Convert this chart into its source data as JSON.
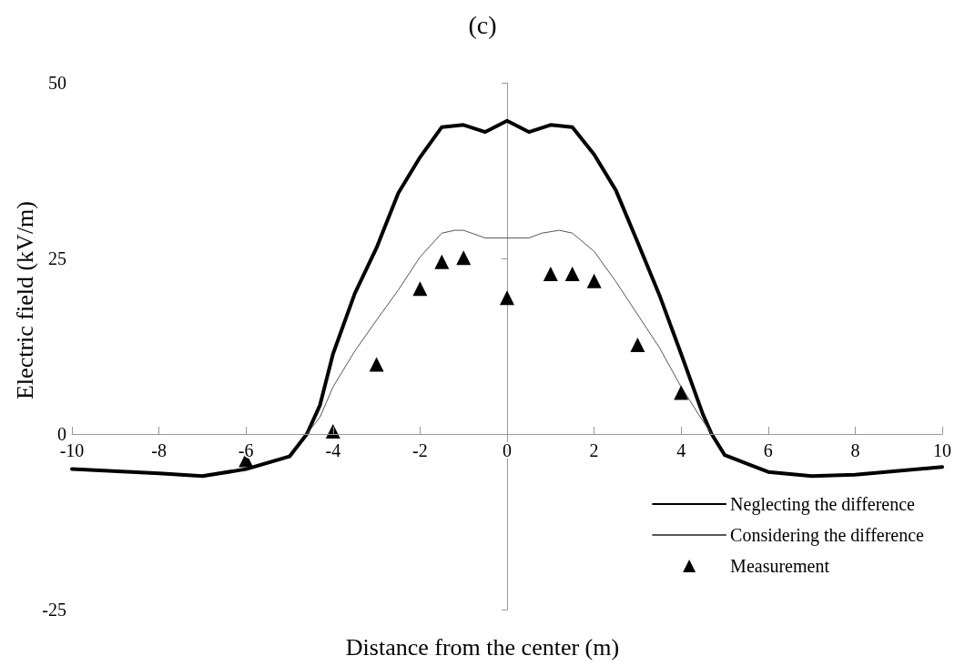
{
  "chart_data": {
    "type": "line",
    "title": "(c)",
    "xlabel": "Distance from the center (m)",
    "ylabel": "Electric field (kV/m)",
    "xlim": [
      -10,
      10
    ],
    "xticks": [
      -10,
      -8,
      -6,
      -4,
      -2,
      0,
      2,
      4,
      6,
      8,
      10
    ],
    "ylim": [
      -25,
      50
    ],
    "yticks": [
      -25,
      0,
      25,
      50
    ],
    "legend": "bottom right",
    "line_style": "solid",
    "series": [
      {
        "name": "Neglecting the difference",
        "color": "#000000",
        "x": [
          -10,
          -8,
          -7,
          -6,
          -5,
          -4.6,
          -4.3,
          -4,
          -3.5,
          -3,
          -2.5,
          -2,
          -1.5,
          -1,
          -0.5,
          0,
          0.5,
          1,
          1.5,
          2,
          2.5,
          3,
          3.5,
          4,
          4.5,
          4.7,
          5,
          6,
          7,
          8,
          10
        ],
        "values": [
          -5,
          -5.6,
          -6,
          -5,
          -3.2,
          0,
          4.1,
          11.4,
          20,
          26.5,
          34.3,
          39.4,
          43.7,
          44,
          43,
          44.6,
          43,
          44,
          43.7,
          39.8,
          34.7,
          27.3,
          19.8,
          11.4,
          2.8,
          0,
          -3,
          -5.4,
          -6,
          -5.8,
          -4.7
        ]
      },
      {
        "name": "Considering the difference",
        "color": "#555555",
        "x": [
          -4.6,
          -4.3,
          -4,
          -3.5,
          -3,
          -2.5,
          -2,
          -1.5,
          -1.2,
          -1,
          -0.5,
          0,
          0.5,
          0.8,
          1.2,
          1.5,
          2,
          2.5,
          3,
          3.5,
          4,
          4.4,
          4.7
        ],
        "values": [
          0,
          2.4,
          6.7,
          11.8,
          16.2,
          20.5,
          25.2,
          28.6,
          29,
          29,
          27.9,
          27.9,
          27.9,
          28.6,
          29,
          28.6,
          26,
          21.7,
          17,
          12.3,
          6.7,
          2.8,
          0
        ]
      },
      {
        "name": "Measurement",
        "type": "scatter",
        "marker": "triangle",
        "color": "#000000",
        "x": [
          -6,
          -4,
          -3,
          -2,
          -1.5,
          -1,
          0,
          1,
          1.5,
          2,
          3,
          4
        ],
        "values": [
          -3.7,
          0.4,
          9.9,
          20.7,
          24.5,
          25.1,
          19.4,
          22.8,
          22.8,
          21.8,
          12.7,
          5.9
        ]
      }
    ]
  }
}
